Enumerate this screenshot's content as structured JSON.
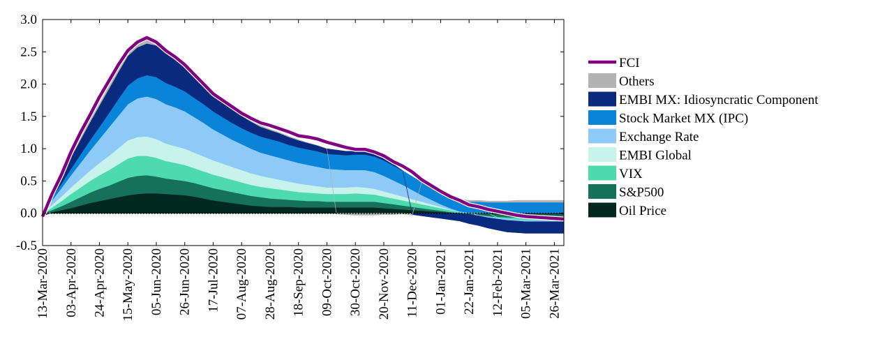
{
  "chart_data": {
    "type": "area",
    "stacked": true,
    "title": "",
    "xlabel": "",
    "ylabel": "",
    "ylim": [
      -0.5,
      3.0
    ],
    "yticks": [
      "-0.5",
      "0.0",
      "0.5",
      "1.0",
      "1.5",
      "2.0",
      "2.5",
      "3.0"
    ],
    "xticks": [
      "13-Mar-2020",
      "03-Apr-2020",
      "24-Apr-2020",
      "15-May-2020",
      "05-Jun-2020",
      "26-Jun-2020",
      "17-Jul-2020",
      "07-Aug-2020",
      "28-Aug-2020",
      "18-Sep-2020",
      "09-Oct-2020",
      "30-Oct-2020",
      "20-Nov-2020",
      "11-Dec-2020",
      "01-Jan-2021",
      "22-Jan-2021",
      "12-Feb-2021",
      "05-Mar-2021",
      "26-Mar-2021"
    ],
    "x": [
      "13-Mar-2020",
      "20-Mar-2020",
      "27-Mar-2020",
      "03-Apr-2020",
      "10-Apr-2020",
      "17-Apr-2020",
      "24-Apr-2020",
      "01-May-2020",
      "08-May-2020",
      "15-May-2020",
      "22-May-2020",
      "29-May-2020",
      "05-Jun-2020",
      "12-Jun-2020",
      "19-Jun-2020",
      "26-Jun-2020",
      "03-Jul-2020",
      "10-Jul-2020",
      "17-Jul-2020",
      "24-Jul-2020",
      "31-Jul-2020",
      "07-Aug-2020",
      "14-Aug-2020",
      "21-Aug-2020",
      "28-Aug-2020",
      "04-Sep-2020",
      "11-Sep-2020",
      "18-Sep-2020",
      "25-Sep-2020",
      "02-Oct-2020",
      "09-Oct-2020",
      "16-Oct-2020",
      "23-Oct-2020",
      "30-Oct-2020",
      "06-Nov-2020",
      "13-Nov-2020",
      "20-Nov-2020",
      "27-Nov-2020",
      "04-Dec-2020",
      "11-Dec-2020",
      "18-Dec-2020",
      "25-Dec-2020",
      "01-Jan-2021",
      "08-Jan-2021",
      "15-Jan-2021",
      "22-Jan-2021",
      "29-Jan-2021",
      "05-Feb-2021",
      "12-Feb-2021",
      "19-Feb-2021",
      "26-Feb-2021",
      "05-Mar-2021",
      "12-Mar-2021",
      "19-Mar-2021",
      "26-Mar-2021",
      "02-Apr-2021"
    ],
    "legend_position": "right",
    "series": [
      {
        "name": "Oil Price",
        "color": "#002a1f",
        "values": [
          -0.05,
          0.02,
          0.05,
          0.08,
          0.12,
          0.16,
          0.19,
          0.22,
          0.25,
          0.28,
          0.3,
          0.31,
          0.31,
          0.3,
          0.29,
          0.28,
          0.26,
          0.23,
          0.2,
          0.18,
          0.16,
          0.14,
          0.12,
          0.11,
          0.1,
          0.1,
          0.1,
          0.09,
          0.09,
          0.09,
          0.09,
          0.09,
          0.09,
          0.09,
          0.09,
          0.09,
          0.08,
          0.07,
          0.06,
          0.05,
          0.04,
          0.03,
          0.02,
          0.01,
          0.0,
          -0.01,
          -0.01,
          -0.02,
          -0.02,
          -0.02,
          -0.02,
          -0.02,
          -0.02,
          -0.02,
          -0.02,
          -0.02
        ]
      },
      {
        "name": "S&P500",
        "color": "#16705a",
        "values": [
          0.0,
          0.03,
          0.06,
          0.1,
          0.13,
          0.16,
          0.19,
          0.21,
          0.24,
          0.27,
          0.28,
          0.28,
          0.26,
          0.24,
          0.23,
          0.22,
          0.21,
          0.2,
          0.19,
          0.18,
          0.17,
          0.16,
          0.15,
          0.14,
          0.13,
          0.12,
          0.11,
          0.11,
          0.1,
          0.1,
          0.09,
          0.09,
          0.09,
          0.09,
          0.09,
          0.09,
          0.08,
          0.07,
          0.06,
          0.05,
          0.04,
          0.03,
          0.02,
          0.01,
          0.0,
          -0.01,
          -0.02,
          -0.03,
          -0.04,
          -0.05,
          -0.05,
          -0.05,
          -0.05,
          -0.05,
          -0.05,
          -0.05
        ]
      },
      {
        "name": "VIX",
        "color": "#4ddbae",
        "values": [
          0.0,
          0.04,
          0.08,
          0.12,
          0.15,
          0.18,
          0.21,
          0.24,
          0.27,
          0.3,
          0.31,
          0.3,
          0.29,
          0.27,
          0.26,
          0.25,
          0.23,
          0.22,
          0.21,
          0.2,
          0.19,
          0.18,
          0.17,
          0.16,
          0.16,
          0.15,
          0.14,
          0.13,
          0.13,
          0.12,
          0.12,
          0.12,
          0.12,
          0.13,
          0.12,
          0.11,
          0.1,
          0.09,
          0.08,
          0.07,
          0.06,
          0.05,
          0.04,
          0.03,
          0.02,
          0.01,
          0.01,
          0.0,
          -0.01,
          -0.02,
          -0.03,
          -0.04,
          -0.04,
          -0.04,
          -0.04,
          -0.04
        ]
      },
      {
        "name": "EMBI Global",
        "color": "#c8f3ea",
        "values": [
          0.0,
          0.04,
          0.07,
          0.1,
          0.13,
          0.16,
          0.19,
          0.22,
          0.25,
          0.28,
          0.29,
          0.3,
          0.29,
          0.27,
          0.26,
          0.25,
          0.24,
          0.23,
          0.22,
          0.21,
          0.2,
          0.19,
          0.18,
          0.17,
          0.16,
          0.15,
          0.14,
          0.13,
          0.12,
          0.11,
          0.1,
          0.1,
          0.1,
          0.1,
          0.1,
          0.09,
          0.08,
          0.07,
          0.06,
          0.05,
          0.04,
          0.03,
          0.02,
          0.01,
          0.0,
          0.0,
          0.0,
          0.0,
          0.0,
          0.0,
          0.0,
          0.0,
          0.0,
          0.0,
          0.0,
          0.0
        ]
      },
      {
        "name": "Exchange Rate",
        "color": "#8ecaf8",
        "values": [
          0.0,
          0.07,
          0.13,
          0.19,
          0.25,
          0.31,
          0.37,
          0.44,
          0.5,
          0.56,
          0.6,
          0.62,
          0.62,
          0.61,
          0.6,
          0.58,
          0.55,
          0.52,
          0.48,
          0.45,
          0.42,
          0.4,
          0.38,
          0.36,
          0.35,
          0.34,
          0.33,
          0.32,
          0.31,
          0.3,
          0.29,
          0.28,
          0.27,
          0.26,
          0.27,
          0.26,
          0.24,
          0.21,
          0.18,
          0.14,
          0.1,
          0.07,
          0.04,
          0.02,
          0.01,
          0.0,
          -0.01,
          -0.02,
          -0.02,
          -0.02,
          -0.02,
          -0.02,
          -0.02,
          -0.02,
          -0.02,
          -0.02
        ]
      },
      {
        "name": "Stock Market MX (IPC)",
        "color": "#0a84d8",
        "values": [
          0.0,
          0.04,
          0.07,
          0.1,
          0.13,
          0.16,
          0.19,
          0.22,
          0.26,
          0.29,
          0.31,
          0.33,
          0.34,
          0.33,
          0.32,
          0.31,
          0.3,
          0.29,
          0.28,
          0.27,
          0.26,
          0.25,
          0.25,
          0.25,
          0.25,
          0.25,
          0.24,
          0.24,
          0.24,
          0.24,
          0.23,
          0.23,
          0.23,
          0.24,
          0.24,
          0.24,
          0.24,
          0.23,
          0.22,
          0.21,
          0.2,
          0.19,
          0.18,
          0.17,
          0.17,
          0.17,
          0.17,
          0.17,
          0.17,
          0.17,
          0.17,
          0.17,
          0.17,
          0.17,
          0.17,
          0.17
        ]
      },
      {
        "name": "EMBI MX: Idiosyncratic Component",
        "color": "#0a2a80",
        "values": [
          0.0,
          0.07,
          0.13,
          0.18,
          0.23,
          0.28,
          0.33,
          0.38,
          0.42,
          0.46,
          0.48,
          0.49,
          0.49,
          0.46,
          0.42,
          0.38,
          0.34,
          0.3,
          0.27,
          0.24,
          0.21,
          0.19,
          0.17,
          0.15,
          0.14,
          0.13,
          0.12,
          0.11,
          0.1,
          0.09,
          0.08,
          0.07,
          0.06,
          0.05,
          0.05,
          0.04,
          0.03,
          0.02,
          0.0,
          -0.02,
          -0.04,
          -0.06,
          -0.08,
          -0.1,
          -0.12,
          -0.14,
          -0.15,
          -0.16,
          -0.17,
          -0.18,
          -0.18,
          -0.18,
          -0.18,
          -0.18,
          -0.18,
          -0.18
        ]
      },
      {
        "name": "Others",
        "color": "#b3b3b3",
        "values": [
          0.0,
          0.01,
          0.01,
          0.02,
          0.02,
          0.03,
          0.03,
          0.04,
          0.04,
          0.05,
          0.06,
          0.06,
          0.06,
          0.06,
          0.05,
          0.05,
          0.05,
          0.04,
          0.04,
          0.03,
          0.03,
          0.02,
          0.02,
          0.02,
          0.01,
          0.01,
          0.01,
          0.01,
          0.0,
          0.0,
          0.0,
          -0.01,
          -0.02,
          -0.03,
          -0.03,
          -0.03,
          -0.02,
          -0.02,
          -0.01,
          -0.01,
          0.0,
          0.0,
          0.01,
          0.01,
          0.02,
          0.02,
          0.02,
          0.02,
          0.02,
          0.02,
          0.03,
          0.03,
          0.03,
          0.03,
          0.03,
          0.03
        ]
      }
    ],
    "line": {
      "name": "FCI",
      "color": "#800080",
      "values": [
        -0.05,
        0.3,
        0.6,
        0.95,
        1.25,
        1.52,
        1.8,
        2.05,
        2.3,
        2.52,
        2.65,
        2.72,
        2.65,
        2.52,
        2.42,
        2.3,
        2.15,
        2.0,
        1.85,
        1.75,
        1.65,
        1.55,
        1.47,
        1.4,
        1.36,
        1.31,
        1.26,
        1.2,
        1.18,
        1.15,
        1.1,
        1.06,
        1.02,
        0.99,
        0.99,
        0.95,
        0.89,
        0.8,
        0.73,
        0.64,
        0.52,
        0.43,
        0.34,
        0.26,
        0.2,
        0.13,
        0.1,
        0.06,
        0.03,
        0.0,
        -0.03,
        -0.05,
        -0.06,
        -0.07,
        -0.08,
        -0.09
      ]
    },
    "legend": [
      "FCI",
      "Others",
      "EMBI MX: Idiosyncratic Component",
      "Stock Market MX (IPC)",
      "Exchange Rate",
      "EMBI Global",
      "VIX",
      "S&P500",
      "Oil Price"
    ]
  }
}
